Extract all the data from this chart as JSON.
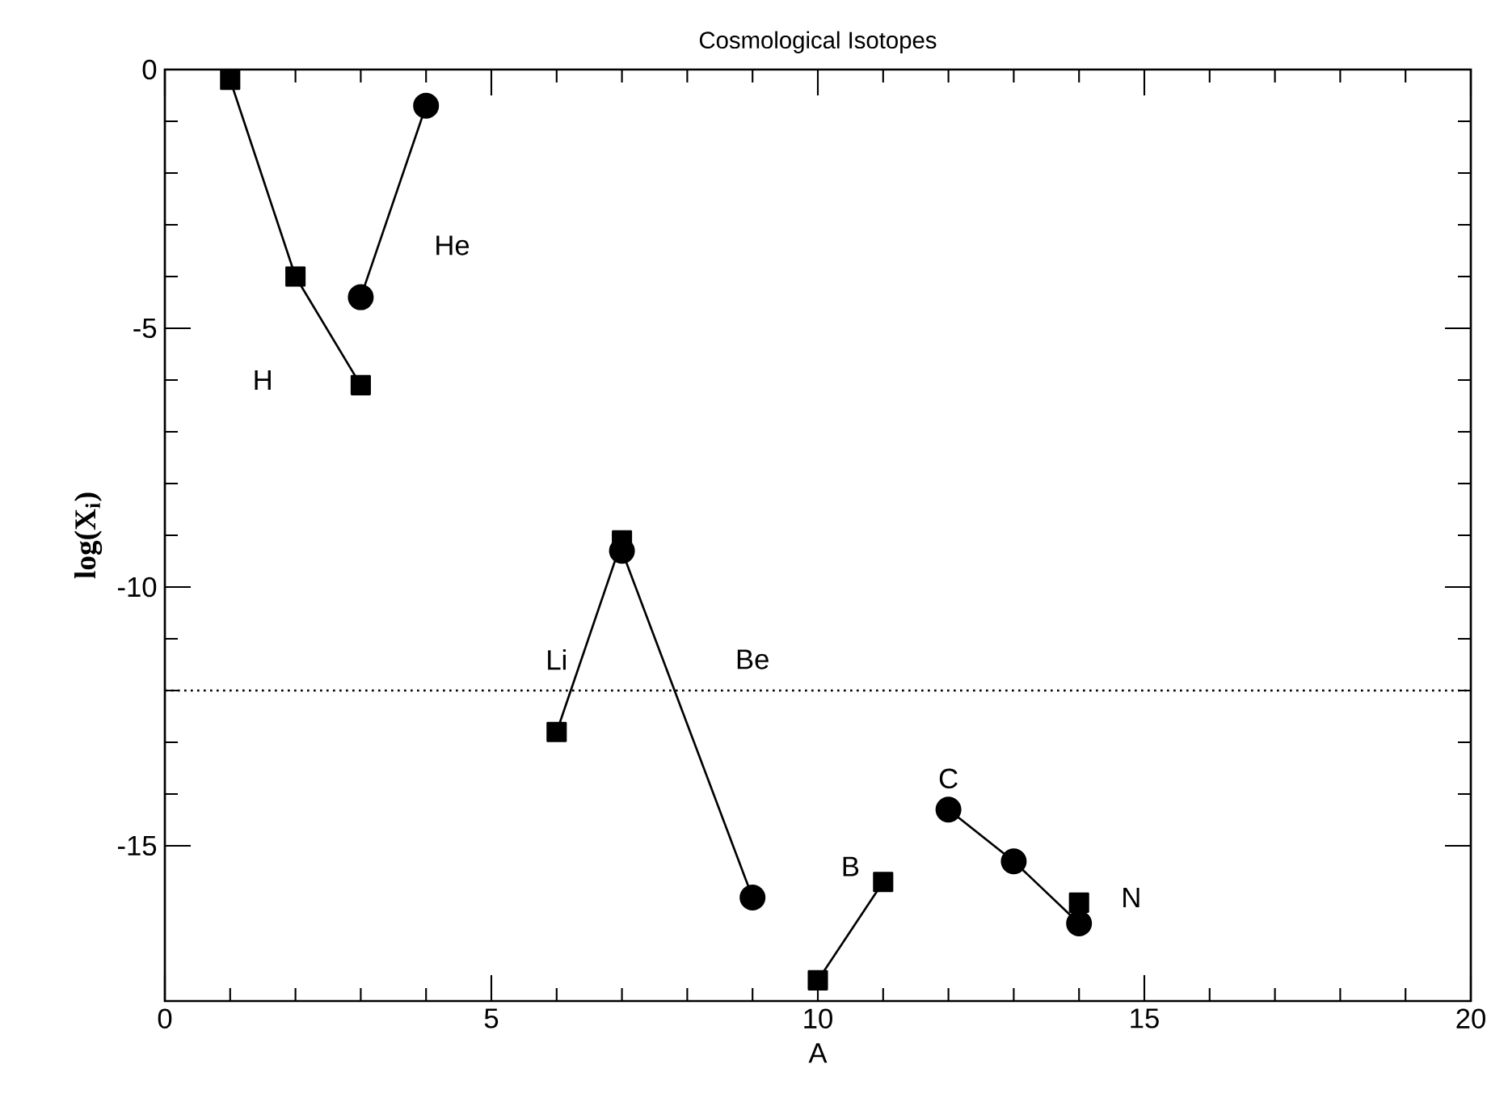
{
  "chart_data": {
    "type": "line",
    "title": "Cosmological Isotopes",
    "xlabel": "A",
    "ylabel": "log(X$_{i}$)",
    "xlim": [
      0,
      20
    ],
    "ylim": [
      -18,
      0
    ],
    "xticks": [
      0,
      5,
      10,
      15,
      20
    ],
    "yticks": [
      0,
      -5,
      -10,
      -15
    ],
    "series": [
      {
        "name": "H",
        "x": [
          1,
          2,
          3
        ],
        "values": [
          -0.2,
          -4.0,
          -6.1
        ],
        "color": "#000000",
        "marker": "square"
      },
      {
        "name": "He",
        "x": [
          3,
          4
        ],
        "values": [
          -4.4,
          -0.7
        ],
        "color": "#000000",
        "marker": "circle"
      },
      {
        "name": "Li",
        "x": [
          6,
          7
        ],
        "values": [
          -12.8,
          -9.1
        ],
        "color": "#000000",
        "marker": "square"
      },
      {
        "name": "Be",
        "x": [
          7,
          9
        ],
        "values": [
          -9.3,
          -16.0
        ],
        "color": "#000000",
        "marker": "circle"
      },
      {
        "name": "B",
        "x": [
          10,
          11
        ],
        "values": [
          -17.6,
          -15.7
        ],
        "color": "#000000",
        "marker": "square"
      },
      {
        "name": "C",
        "x": [
          12,
          13,
          14
        ],
        "values": [
          -14.3,
          -15.3,
          -16.5
        ],
        "color": "#000000",
        "marker": "circle"
      },
      {
        "name": "N",
        "x": [
          14
        ],
        "values": [
          -16.1
        ],
        "color": "#000000",
        "marker": "square"
      }
    ],
    "ref_lines": [
      {
        "axis": "y",
        "value": -12,
        "line_style": "dotted"
      }
    ]
  }
}
